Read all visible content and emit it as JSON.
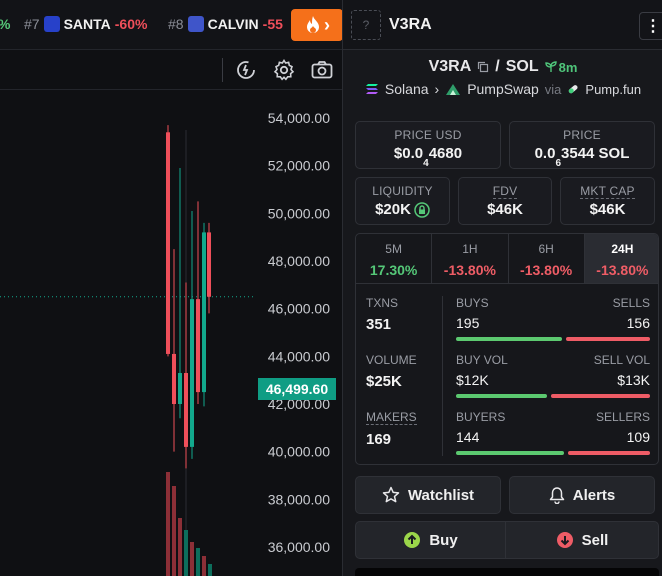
{
  "ticker": [
    {
      "rank": "#7",
      "name": "SANTA",
      "change": "-60%"
    },
    {
      "rank": "#8",
      "name": "CALVIN",
      "change": "-55"
    }
  ],
  "ticker_partial_left": "%",
  "fire_button": {
    "arrow": "›"
  },
  "chart": {
    "y_ticks": [
      "54,000.00",
      "52,000.00",
      "50,000.00",
      "48,000.00",
      "46,000.00",
      "44,000.00",
      "42,000.00",
      "40,000.00",
      "38,000.00",
      "36,000.00"
    ],
    "current_price": "46,499.60"
  },
  "chart_data": {
    "type": "candlestick",
    "y_ticks": [
      54000,
      52000,
      50000,
      48000,
      46000,
      44000,
      42000,
      40000,
      38000,
      36000
    ],
    "current_price": 46499.6,
    "colors": {
      "up": "#12a98d",
      "down": "#ef4f5a"
    }
  },
  "header": {
    "logo_placeholder": "?",
    "title": "V3RA",
    "menu": "⋮"
  },
  "pair": {
    "base": "V3RA",
    "slash": "/",
    "quote": "SOL",
    "age": "8m"
  },
  "chain": {
    "chain": "Solana",
    "sep": "›",
    "dex": "PumpSwap",
    "via": "via",
    "launchpad": "Pump.fun"
  },
  "price_usd": {
    "label": "PRICE USD",
    "prefix": "$0.0",
    "zeros": "4",
    "digits": "4680"
  },
  "price_sol": {
    "label": "PRICE",
    "prefix": "0.0",
    "zeros": "6",
    "digits": "3544 SOL"
  },
  "liquidity": {
    "label": "LIQUIDITY",
    "value": "$20K"
  },
  "fdv": {
    "label": "FDV",
    "value": "$46K"
  },
  "mktcap": {
    "label": "MKT CAP",
    "value": "$46K"
  },
  "timeframes": [
    {
      "label": "5M",
      "value": "17.30%",
      "dir": "pos"
    },
    {
      "label": "1H",
      "value": "-13.80%",
      "dir": "neg"
    },
    {
      "label": "6H",
      "value": "-13.80%",
      "dir": "neg"
    },
    {
      "label": "24H",
      "value": "-13.80%",
      "dir": "neg",
      "active": true
    }
  ],
  "stats": {
    "txns": {
      "label": "TXNS",
      "value": "351"
    },
    "volume": {
      "label": "VOLUME",
      "value": "$25K"
    },
    "makers": {
      "label": "MAKERS",
      "value": "169"
    }
  },
  "buys_sells": {
    "buy_label": "BUYS",
    "sell_label": "SELLS",
    "buy": "195",
    "sell": "156",
    "buy_ratio": 0.556
  },
  "buy_sell_vol": {
    "buy_label": "BUY VOL",
    "sell_label": "SELL VOL",
    "buy": "$12K",
    "sell": "$13K",
    "buy_ratio": 0.48
  },
  "buyers_sellers": {
    "buy_label": "BUYERS",
    "sell_label": "SELLERS",
    "buy": "144",
    "sell": "109",
    "buy_ratio": 0.57
  },
  "actions": {
    "watchlist": "Watchlist",
    "alerts": "Alerts",
    "buy": "Buy",
    "sell": "Sell"
  },
  "colors": {
    "accent_orange": "#f5701a",
    "green": "#55c878",
    "red": "#ef5d66",
    "teal": "#0f9d84"
  }
}
